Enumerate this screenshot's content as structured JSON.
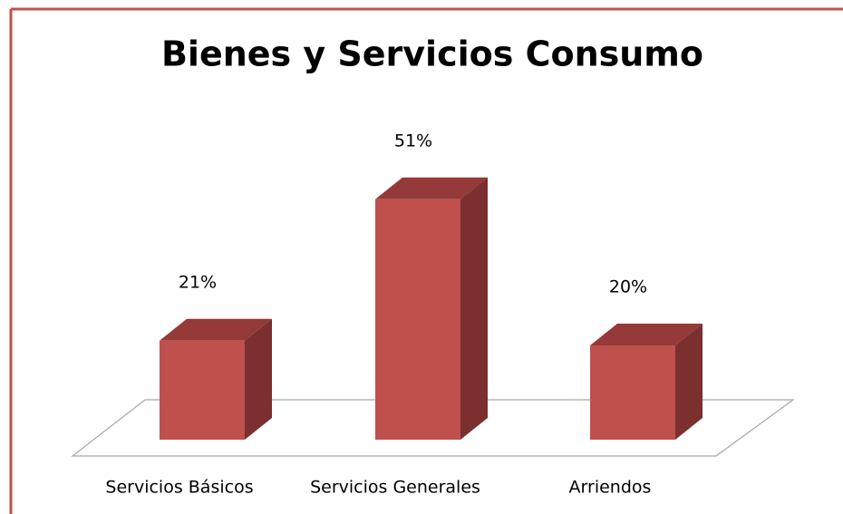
{
  "chart_data": {
    "type": "bar3d",
    "title": "Bienes y Servicios Consumo",
    "categories": [
      "Servicios Básicos",
      "Servicios Generales",
      "Arriendos"
    ],
    "values": [
      21,
      51,
      20
    ],
    "value_labels": [
      "21%",
      "51%",
      "20%"
    ],
    "color": "#c0504d"
  }
}
